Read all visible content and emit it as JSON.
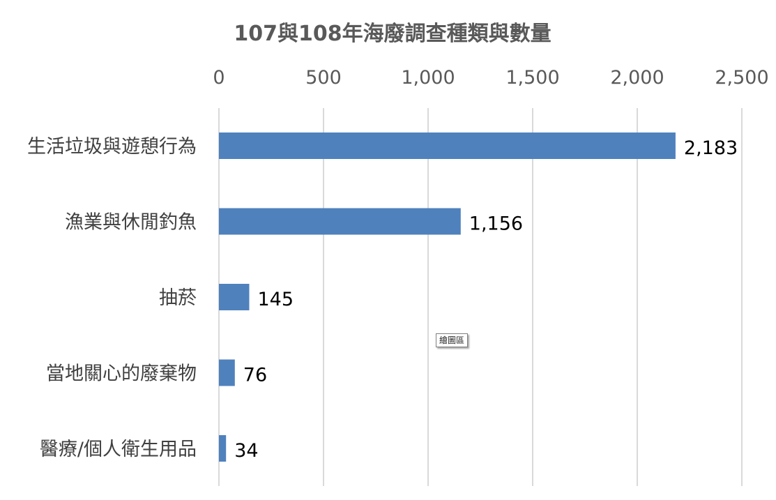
{
  "chart_data": {
    "type": "bar",
    "orientation": "horizontal",
    "title": "107與108年海廢調查種類與數量",
    "categories": [
      "生活垃圾與遊憩行為",
      "漁業與休閒釣魚",
      "抽菸",
      "當地關心的廢棄物",
      "醫療/個人衛生用品"
    ],
    "values": [
      2183,
      1156,
      145,
      76,
      34
    ],
    "data_labels": [
      "2,183",
      "1,156",
      "145",
      "76",
      "34"
    ],
    "x_ticks": [
      0,
      500,
      1000,
      1500,
      2000,
      2500
    ],
    "x_tick_labels": [
      "0",
      "500",
      "1,000",
      "1,500",
      "2,000",
      "2,500"
    ],
    "xlim": [
      0,
      2500
    ],
    "x_axis_position": "top",
    "grid": true,
    "legend": "none",
    "colors": {
      "bar": "#4f81bd",
      "grid": "#d9d9d9"
    }
  },
  "tooltip": {
    "text": "繪圖區"
  }
}
